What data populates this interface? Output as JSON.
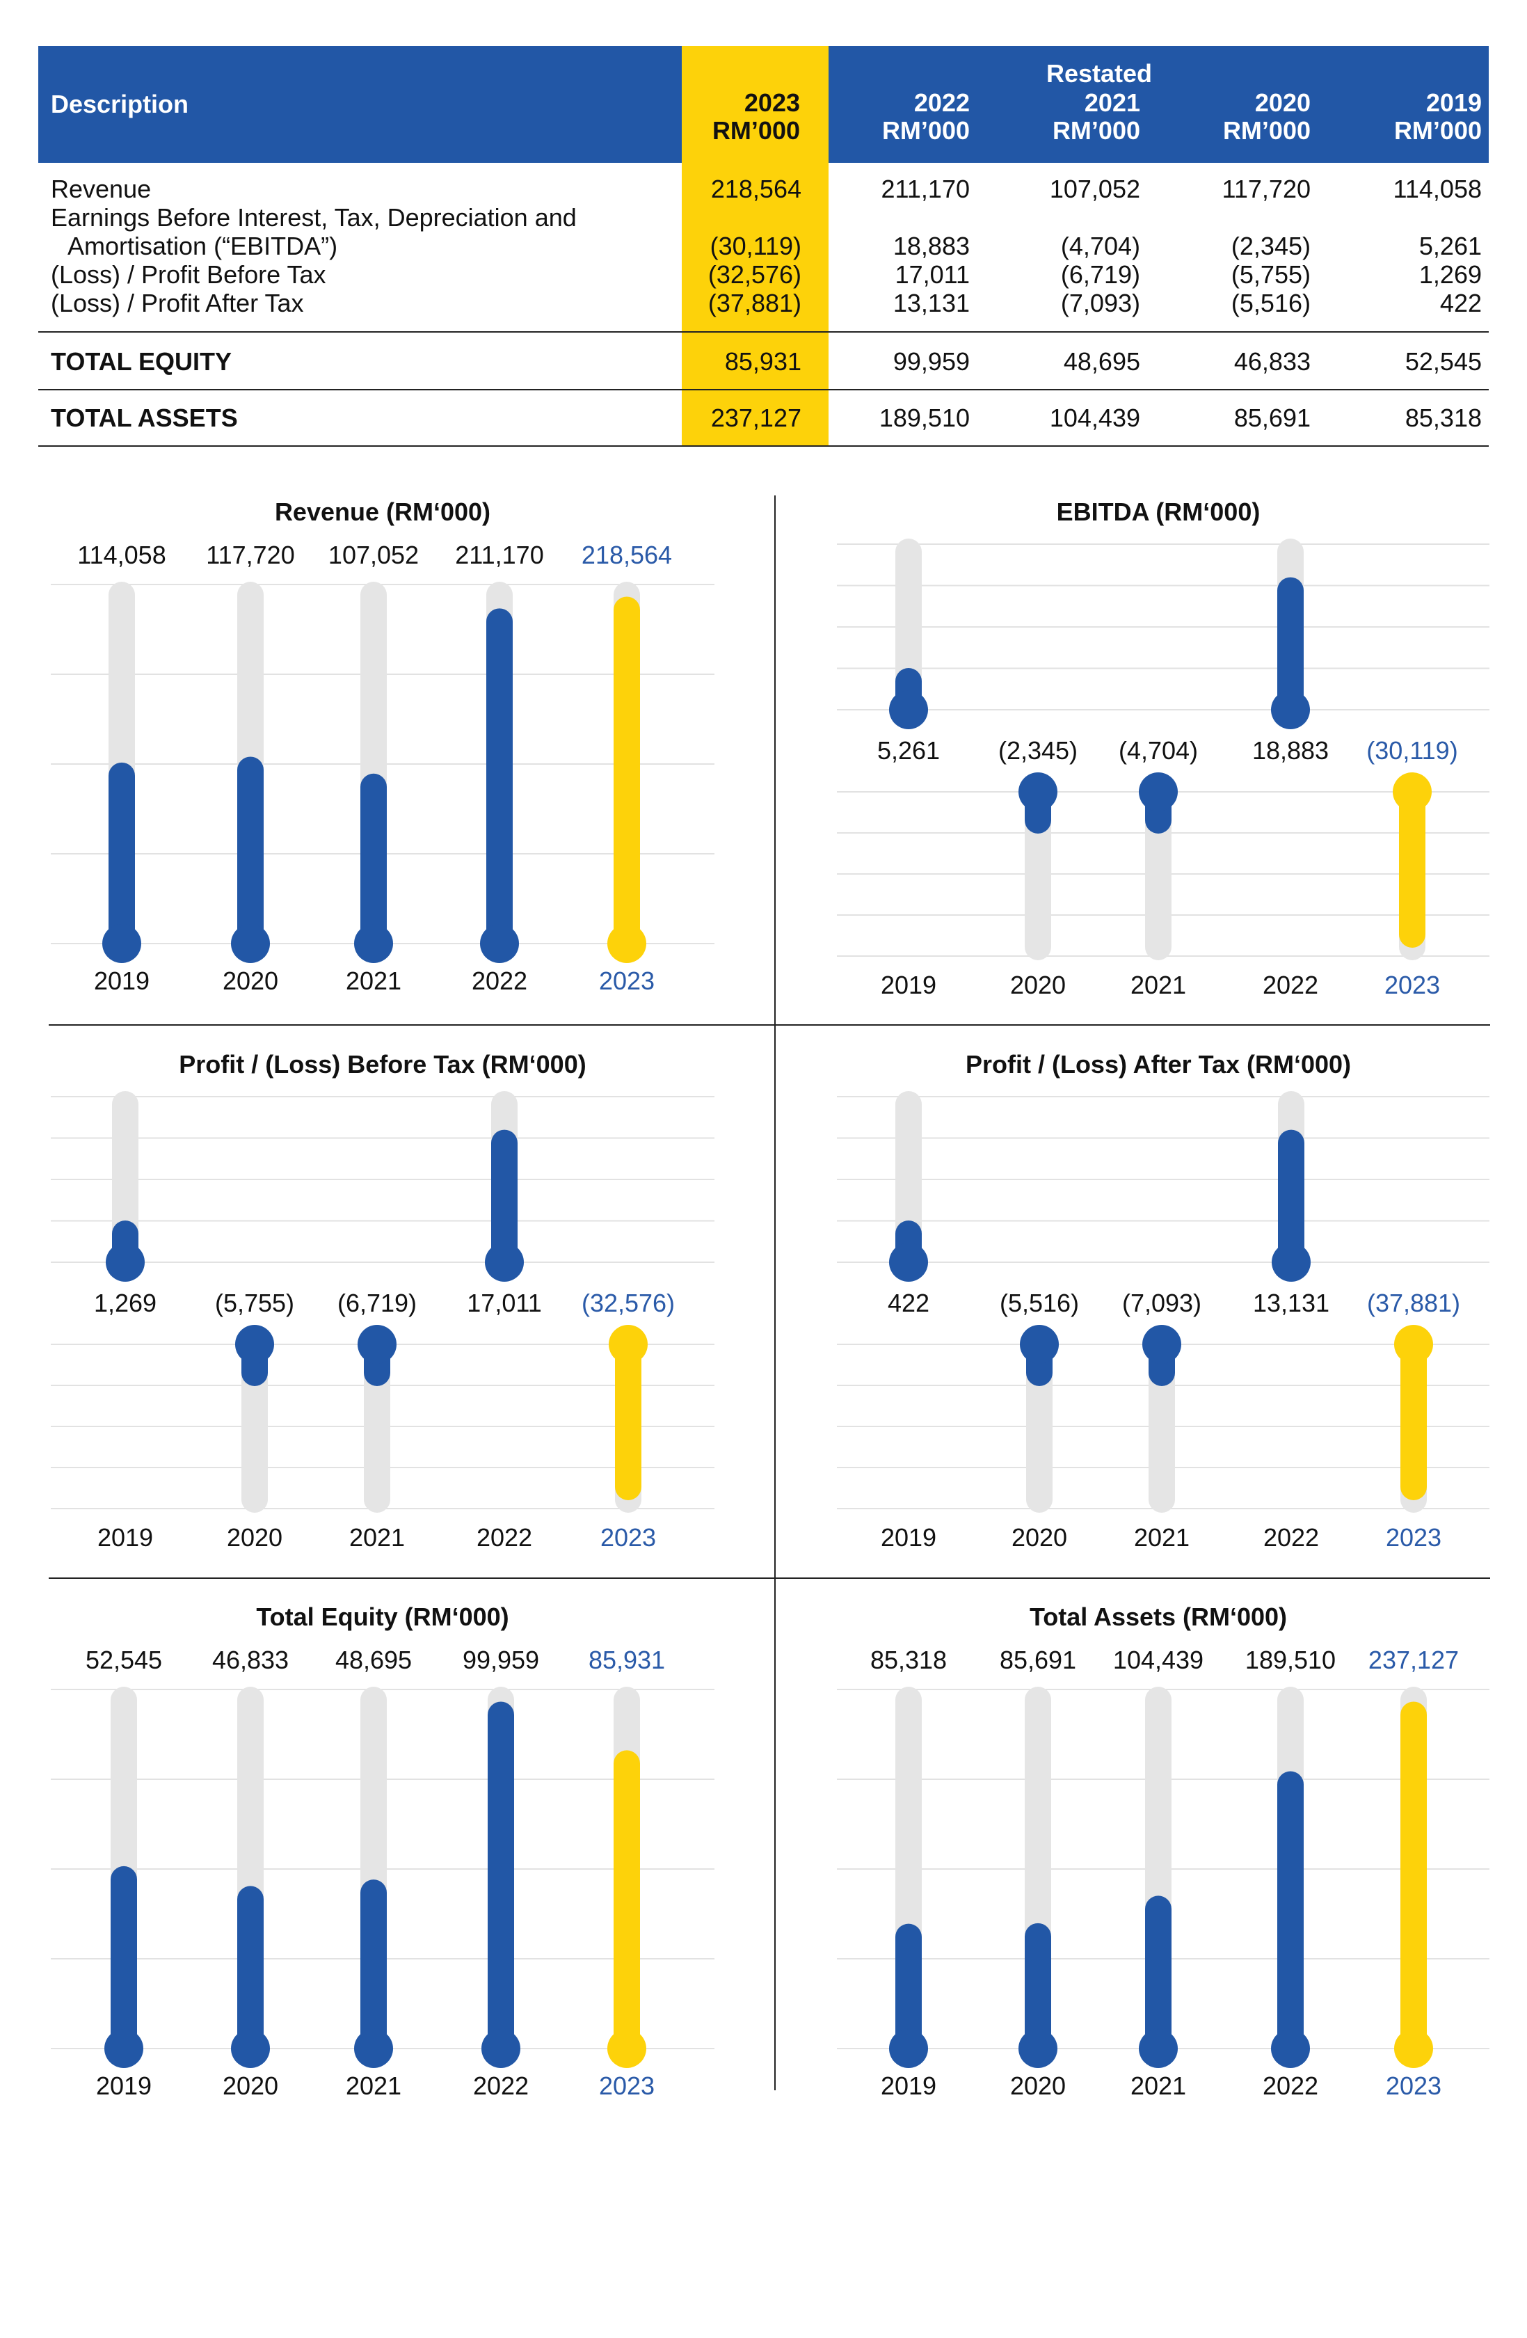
{
  "colors": {
    "header_blue": "#2257a6",
    "bar_blue": "#2257a6",
    "highlight_yellow": "#fdd20a",
    "track_grey": "#e5e5e5",
    "gridline_grey": "#e2e2e2",
    "label_blue": "#2a5aa8",
    "text": "#111111"
  },
  "table": {
    "header": {
      "description": "Description",
      "restated": "Restated",
      "columns": [
        {
          "year": "2023",
          "unit": "RM’000"
        },
        {
          "year": "2022",
          "unit": "RM’000"
        },
        {
          "year": "2021",
          "unit": "RM’000"
        },
        {
          "year": "2020",
          "unit": "RM’000"
        },
        {
          "year": "2019",
          "unit": "RM’000"
        }
      ]
    },
    "rows": [
      {
        "label": [
          "Revenue"
        ],
        "values": [
          "218,564",
          "211,170",
          "107,052",
          "117,720",
          "114,058"
        ]
      },
      {
        "label": [
          "Earnings Before Interest, Tax, Depreciation and",
          "Amortisation (“EBITDA”)"
        ],
        "values": [
          "(30,119)",
          "18,883",
          "(4,704)",
          "(2,345)",
          "5,261"
        ]
      },
      {
        "label": [
          "(Loss) / Profit Before Tax"
        ],
        "values": [
          "(32,576)",
          "17,011",
          "(6,719)",
          "(5,755)",
          "1,269"
        ]
      },
      {
        "label": [
          "(Loss) / Profit After Tax"
        ],
        "values": [
          "(37,881)",
          "13,131",
          "(7,093)",
          "(5,516)",
          "422"
        ]
      }
    ],
    "totals": [
      {
        "label": "TOTAL EQUITY",
        "values": [
          "85,931",
          "99,959",
          "48,695",
          "46,833",
          "52,545"
        ]
      },
      {
        "label": "TOTAL ASSETS",
        "values": [
          "237,127",
          "189,510",
          "104,439",
          "85,691",
          "85,318"
        ]
      }
    ]
  },
  "chart_data": [
    {
      "id": "revenue",
      "type": "bar",
      "title": "Revenue (RM‘000)",
      "categories": [
        "2019",
        "2020",
        "2021",
        "2022",
        "2023"
      ],
      "values": [
        114058,
        117720,
        107052,
        211170,
        218564
      ],
      "labels": [
        "114,058",
        "117,720",
        "107,052",
        "211,170",
        "218,564"
      ],
      "highlight": "2023",
      "grid": true,
      "legend": "none"
    },
    {
      "id": "ebitda",
      "type": "bar",
      "title": "EBITDA (RM‘000)",
      "categories": [
        "2019",
        "2020",
        "2021",
        "2022",
        "2023"
      ],
      "values": [
        5261,
        -2345,
        -4704,
        18883,
        -30119
      ],
      "labels": [
        "5,261",
        "(2,345)",
        "(4,704)",
        "18,883",
        "(30,119)"
      ],
      "highlight": "2023",
      "grid": true,
      "legend": "none"
    },
    {
      "id": "pbt",
      "type": "bar",
      "title": "Profit / (Loss) Before Tax (RM‘000)",
      "categories": [
        "2019",
        "2020",
        "2021",
        "2022",
        "2023"
      ],
      "values": [
        1269,
        -5755,
        -6719,
        17011,
        -32576
      ],
      "labels": [
        "1,269",
        "(5,755)",
        "(6,719)",
        "17,011",
        "(32,576)"
      ],
      "highlight": "2023",
      "grid": true,
      "legend": "none"
    },
    {
      "id": "pat",
      "type": "bar",
      "title": "Profit / (Loss) After Tax (RM‘000)",
      "categories": [
        "2019",
        "2020",
        "2021",
        "2022",
        "2023"
      ],
      "values": [
        422,
        -5516,
        -7093,
        13131,
        -37881
      ],
      "labels": [
        "422",
        "(5,516)",
        "(7,093)",
        "13,131",
        "(37,881)"
      ],
      "highlight": "2023",
      "grid": true,
      "legend": "none"
    },
    {
      "id": "equity",
      "type": "bar",
      "title": "Total Equity (RM‘000)",
      "categories": [
        "2019",
        "2020",
        "2021",
        "2022",
        "2023"
      ],
      "values": [
        52545,
        46833,
        48695,
        99959,
        85931
      ],
      "labels": [
        "52,545",
        "46,833",
        "48,695",
        "99,959",
        "85,931"
      ],
      "highlight": "2023",
      "grid": true,
      "legend": "none"
    },
    {
      "id": "assets",
      "type": "bar",
      "title": "Total Assets (RM‘000)",
      "categories": [
        "2019",
        "2020",
        "2021",
        "2022",
        "2023"
      ],
      "values": [
        85318,
        85691,
        104439,
        189510,
        237127
      ],
      "labels": [
        "85,318",
        "85,691",
        "104,439",
        "189,510",
        "237,127"
      ],
      "highlight": "2023",
      "grid": true,
      "legend": "none"
    }
  ]
}
